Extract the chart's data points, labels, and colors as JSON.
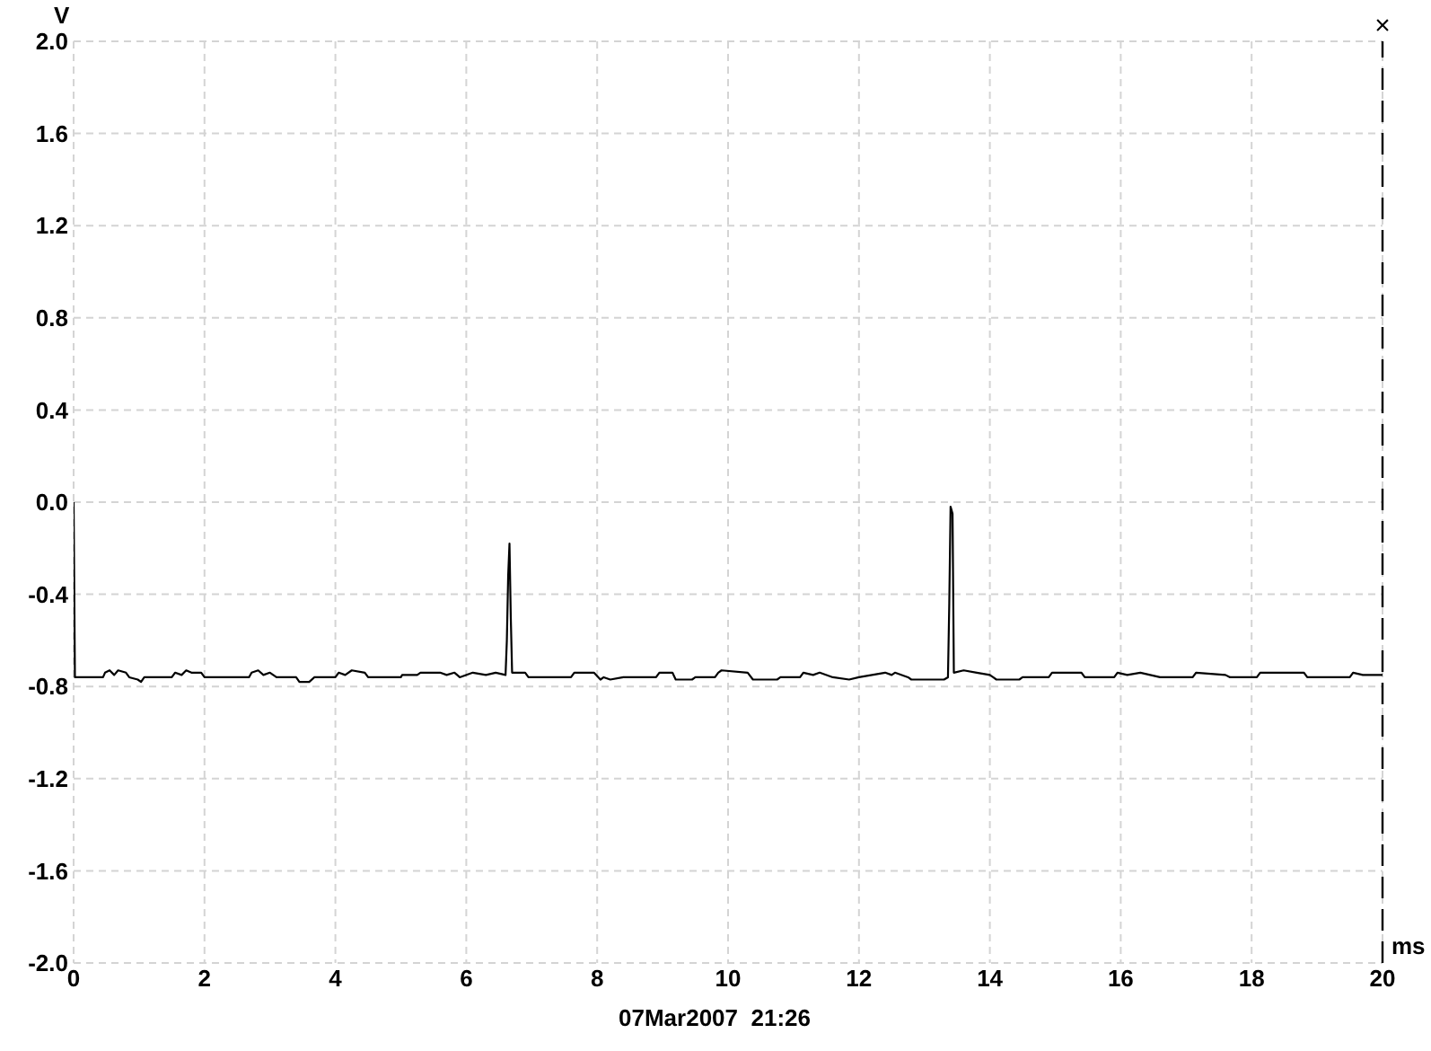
{
  "chart_data": {
    "type": "line",
    "xlabel": "ms",
    "ylabel": "V",
    "annotations": [
      "07Mar2007  21:26"
    ],
    "x": [
      0,
      0.02,
      0.45,
      0.48,
      0.55,
      0.62,
      0.68,
      0.8,
      0.85,
      0.98,
      1.03,
      1.08,
      1.5,
      1.55,
      1.65,
      1.72,
      1.8,
      1.95,
      2.0,
      2.68,
      2.72,
      2.82,
      2.9,
      3.0,
      3.1,
      3.4,
      3.45,
      3.6,
      3.68,
      4.0,
      4.05,
      4.15,
      4.25,
      4.45,
      4.5,
      5.0,
      5.02,
      5.25,
      5.3,
      5.6,
      5.7,
      5.82,
      5.9,
      6.1,
      6.3,
      6.45,
      6.6,
      6.62,
      6.64,
      6.66,
      6.68,
      6.7,
      6.9,
      6.95,
      7.6,
      7.65,
      7.95,
      8.05,
      8.1,
      8.2,
      8.4,
      8.9,
      8.95,
      9.15,
      9.2,
      9.45,
      9.5,
      9.8,
      9.85,
      9.9,
      10.3,
      10.38,
      10.75,
      10.8,
      11.1,
      11.15,
      11.3,
      11.4,
      11.6,
      11.85,
      12.0,
      12.4,
      12.5,
      12.55,
      12.75,
      12.8,
      13.3,
      13.36,
      13.38,
      13.4,
      13.43,
      13.45,
      13.6,
      13.8,
      14.0,
      14.05,
      14.1,
      14.45,
      14.5,
      14.9,
      14.95,
      15.4,
      15.45,
      15.9,
      15.95,
      16.1,
      16.3,
      16.6,
      17.1,
      17.15,
      17.6,
      17.67,
      18.08,
      18.13,
      18.8,
      18.85,
      19.5,
      19.55,
      19.7,
      20
    ],
    "values": [
      0.0,
      -0.76,
      -0.76,
      -0.74,
      -0.73,
      -0.75,
      -0.73,
      -0.74,
      -0.76,
      -0.77,
      -0.78,
      -0.76,
      -0.76,
      -0.74,
      -0.75,
      -0.73,
      -0.74,
      -0.74,
      -0.76,
      -0.76,
      -0.74,
      -0.73,
      -0.75,
      -0.74,
      -0.76,
      -0.76,
      -0.78,
      -0.78,
      -0.76,
      -0.76,
      -0.74,
      -0.75,
      -0.73,
      -0.74,
      -0.76,
      -0.76,
      -0.75,
      -0.75,
      -0.74,
      -0.74,
      -0.75,
      -0.74,
      -0.76,
      -0.74,
      -0.75,
      -0.74,
      -0.75,
      -0.6,
      -0.32,
      -0.18,
      -0.5,
      -0.74,
      -0.74,
      -0.76,
      -0.76,
      -0.74,
      -0.74,
      -0.77,
      -0.76,
      -0.77,
      -0.76,
      -0.76,
      -0.74,
      -0.74,
      -0.77,
      -0.77,
      -0.76,
      -0.76,
      -0.74,
      -0.73,
      -0.74,
      -0.77,
      -0.77,
      -0.76,
      -0.76,
      -0.74,
      -0.75,
      -0.74,
      -0.76,
      -0.77,
      -0.76,
      -0.74,
      -0.75,
      -0.74,
      -0.76,
      -0.77,
      -0.77,
      -0.76,
      -0.44,
      -0.02,
      -0.05,
      -0.74,
      -0.73,
      -0.74,
      -0.75,
      -0.76,
      -0.77,
      -0.77,
      -0.76,
      -0.76,
      -0.74,
      -0.74,
      -0.76,
      -0.76,
      -0.74,
      -0.75,
      -0.74,
      -0.76,
      -0.76,
      -0.74,
      -0.75,
      -0.76,
      -0.76,
      -0.74,
      -0.74,
      -0.76,
      -0.76,
      -0.74,
      -0.75,
      -0.75
    ],
    "color": "#000000",
    "xlim": [
      0,
      20
    ],
    "xticks": [
      0,
      2,
      4,
      6,
      8,
      10,
      12,
      14,
      16,
      18,
      20
    ],
    "ylim": [
      -2,
      2
    ],
    "yticks": [
      {
        "value": -2,
        "label": "-2.0"
      },
      -1.6,
      -1.2,
      -0.8,
      -0.4,
      {
        "value": 0,
        "label": "0.0"
      },
      0.4,
      0.8,
      1.2,
      1.6,
      {
        "value": 2,
        "label": "2.0"
      }
    ],
    "grid": true,
    "ref_lines": [
      {
        "axis": "x",
        "value": 20,
        "label": "×",
        "color": "#000000",
        "line_style": "dashed"
      }
    ]
  }
}
